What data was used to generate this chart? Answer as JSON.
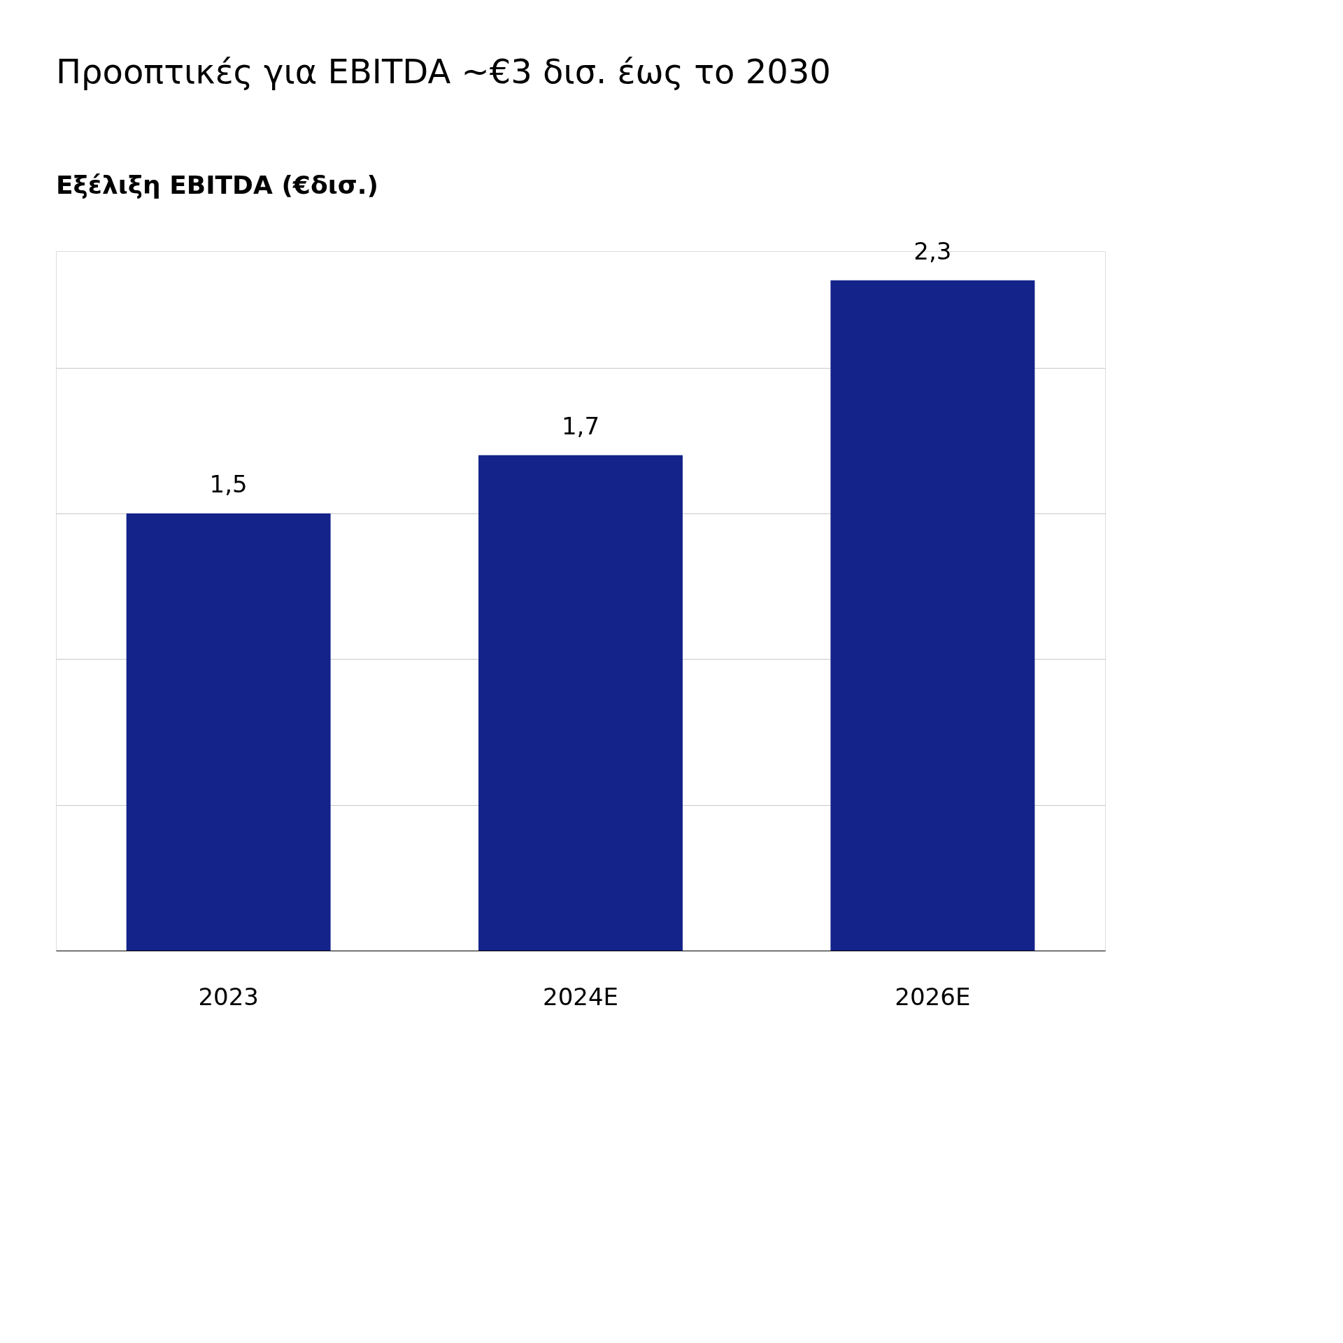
{
  "chart_data": {
    "type": "bar",
    "title": "Προοπτικές για EBITDA ~€3 δισ. έως το 2030",
    "subtitle": "Εξέλιξη EBITDA (€δισ.)",
    "categories": [
      "2023",
      "2024E",
      "2026E"
    ],
    "values": [
      1.5,
      1.7,
      2.3
    ],
    "value_labels": [
      "1,5",
      "1,7",
      "2,3"
    ],
    "color": "#14238a",
    "grid": "y",
    "tick_labels": "x"
  }
}
